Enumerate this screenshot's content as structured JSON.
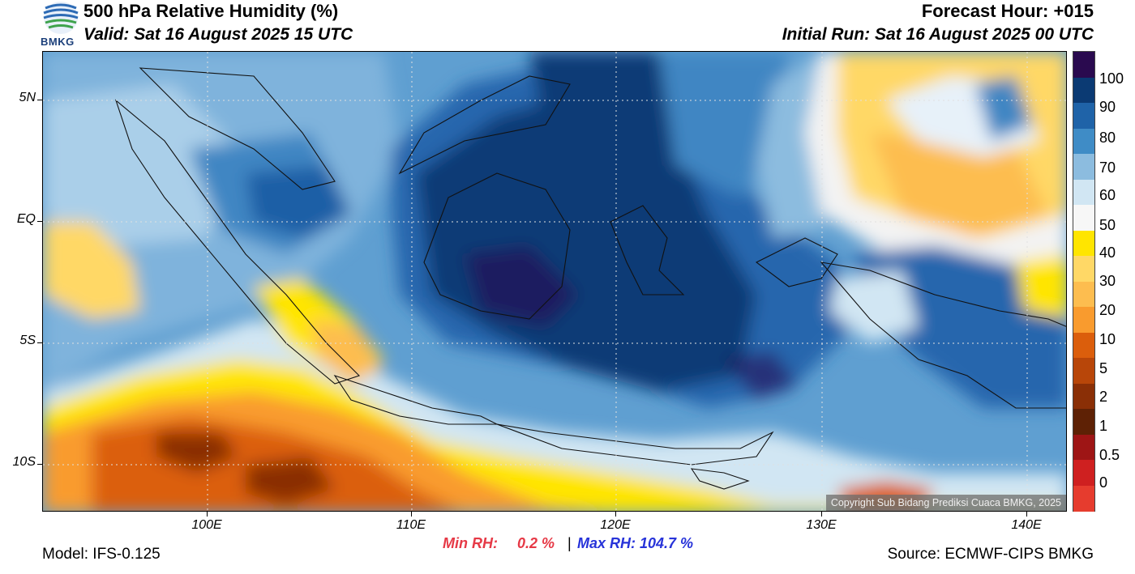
{
  "header": {
    "logo_text": "BMKG",
    "title": "500 hPa Relative Humidity (%)",
    "valid": "Valid: Sat 16 August 2025 15 UTC",
    "forecast_hour": "Forecast Hour: +015",
    "initial_run": "Initial Run: Sat 16 August 2025 00 UTC"
  },
  "map": {
    "lat_labels": [
      "5N",
      "EQ",
      "5S",
      "10S"
    ],
    "lon_labels": [
      "100E",
      "110E",
      "120E",
      "130E",
      "140E"
    ],
    "copyright": "Copyright Sub Bidang Prediksi Cuaca BMKG, 2025"
  },
  "colorbar": {
    "labels": [
      "100",
      "90",
      "80",
      "70",
      "60",
      "50",
      "40",
      "30",
      "20",
      "10",
      "5",
      "2",
      "1",
      "0.5",
      "0"
    ],
    "colors": [
      "#2a0a4f",
      "#0b3a73",
      "#1f63a8",
      "#3f8cc6",
      "#8cbcdf",
      "#d1e6f3",
      "#f7f7f7",
      "#ffe500",
      "#ffd866",
      "#fdbd4f",
      "#f99b2e",
      "#db5e0c",
      "#b84609",
      "#8a2f06",
      "#5e2105",
      "#9e1515",
      "#cf2020",
      "#e63c2e"
    ]
  },
  "stats": {
    "min_label": "Min RH:",
    "min_value": "0.2 %",
    "separator": "|",
    "max_label": "Max RH: 104.7 %",
    "min_color": "#e63946",
    "max_color": "#2733d9"
  },
  "footer": {
    "model": "Model: IFS-0.125",
    "source": "Source: ECMWF-CIPS BMKG"
  }
}
